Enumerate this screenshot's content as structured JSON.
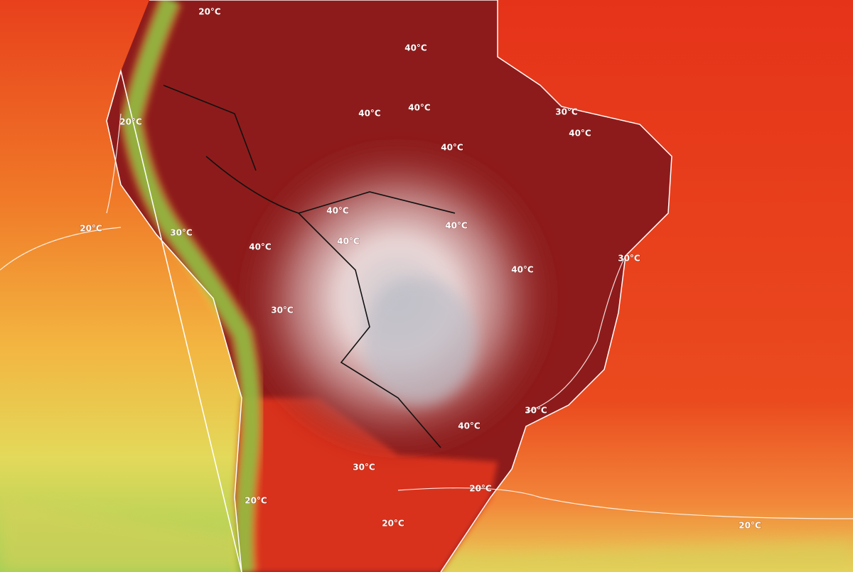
{
  "contour_labels": [
    "20°C",
    "40°C",
    "40°C",
    "40°C",
    "30°C",
    "40°C",
    "40°C",
    "20°C",
    "40°C",
    "40°C",
    "20°C",
    "30°C",
    "40°C",
    "40°C",
    "30°C",
    "40°C",
    "30°C",
    "30°C",
    "40°C",
    "30°C",
    "20°C",
    "20°C",
    "20°C",
    "20°C"
  ]
}
